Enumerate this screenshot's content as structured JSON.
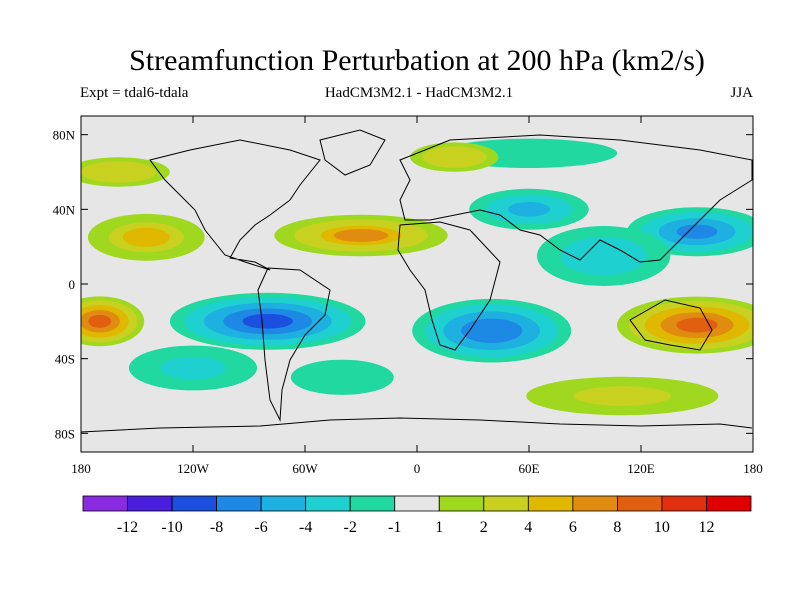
{
  "header": {
    "title": "Streamfunction Perturbation at 200 hPa (km2/s)",
    "expt": "Expt = tdal6-tdala",
    "model": "HadCM3M2.1 - HadCM3M2.1",
    "season": "JJA"
  },
  "axes": {
    "y_labels": [
      "80N",
      "40N",
      "0",
      "40S",
      "80S"
    ],
    "x_labels": [
      "180",
      "120W",
      "60W",
      "0",
      "60E",
      "120E",
      "180"
    ]
  },
  "colorbar": {
    "labels": [
      "-12",
      "-10",
      "-8",
      "-6",
      "-4",
      "-2",
      "-1",
      "1",
      "2",
      "4",
      "6",
      "8",
      "10",
      "12"
    ],
    "colors": [
      "#8a2be2",
      "#4b1fe0",
      "#1b4fe0",
      "#1e88e5",
      "#1eb0e0",
      "#1ed0d0",
      "#20d8a0",
      "#e6e6e6",
      "#a0d820",
      "#c8d020",
      "#e0b800",
      "#e08c10",
      "#e06010",
      "#e03010",
      "#e00000"
    ]
  },
  "map": {
    "lon_range": [
      -180,
      180
    ],
    "lat_range": [
      -90,
      90
    ],
    "blobs": [
      {
        "lon": -80,
        "lat": -20,
        "rx": 55,
        "ry": 16,
        "v": -9
      },
      {
        "lon": 40,
        "lat": -25,
        "rx": 45,
        "ry": 18,
        "v": -8
      },
      {
        "lon": 150,
        "lat": 28,
        "rx": 40,
        "ry": 14,
        "v": -7
      },
      {
        "lon": 60,
        "lat": 40,
        "rx": 35,
        "ry": 12,
        "v": -5
      },
      {
        "lon": 100,
        "lat": 15,
        "rx": 40,
        "ry": 18,
        "v": -4
      },
      {
        "lon": -120,
        "lat": -45,
        "rx": 40,
        "ry": 14,
        "v": -3
      },
      {
        "lon": -40,
        "lat": -50,
        "rx": 35,
        "ry": 12,
        "v": -2
      },
      {
        "lon": 60,
        "lat": 70,
        "rx": 60,
        "ry": 10,
        "v": -2
      },
      {
        "lon": -170,
        "lat": -20,
        "rx": 25,
        "ry": 14,
        "v": 9
      },
      {
        "lon": 150,
        "lat": -22,
        "rx": 45,
        "ry": 16,
        "v": 9
      },
      {
        "lon": -30,
        "lat": 26,
        "rx": 50,
        "ry": 12,
        "v": 6
      },
      {
        "lon": -145,
        "lat": 25,
        "rx": 35,
        "ry": 14,
        "v": 4
      },
      {
        "lon": 110,
        "lat": -60,
        "rx": 60,
        "ry": 12,
        "v": 3
      },
      {
        "lon": -160,
        "lat": 60,
        "rx": 35,
        "ry": 10,
        "v": 2
      },
      {
        "lon": 20,
        "lat": 68,
        "rx": 30,
        "ry": 10,
        "v": 2
      }
    ]
  }
}
